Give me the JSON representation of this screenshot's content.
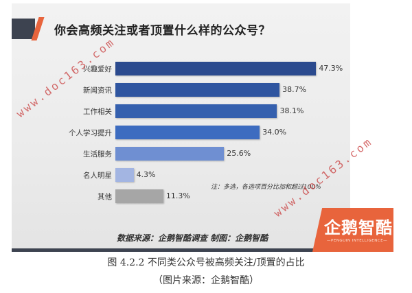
{
  "slide": {
    "title": "你会高频关注或者顶置什么样的公众号？",
    "note": "注：多选，各选项百分比加和超过100%",
    "source": "数据来源：企鹅智酷调查  制图：企鹅智酷",
    "logo": {
      "text": "企鹅智酷",
      "subtitle": "—PENGUIN INTELLIGENCE—"
    }
  },
  "caption": {
    "line1": "图 4.2.2 不同类公众号被高频关注/顶置的占比",
    "line2": "（图片来源：企鹅智酷）"
  },
  "watermarks": [
    "www.doc163.com",
    "www.doc163.com"
  ],
  "chart_data": {
    "type": "bar",
    "orientation": "horizontal",
    "title": "你会高频关注或者顶置什么样的公众号？",
    "categories": [
      "兴趣爱好",
      "新闻资讯",
      "工作相关",
      "个人学习提升",
      "生活服务",
      "名人明星",
      "其他"
    ],
    "values": [
      47.3,
      38.7,
      38.1,
      34.0,
      25.6,
      4.3,
      11.3
    ],
    "labels": [
      "47.3%",
      "38.7%",
      "38.1%",
      "34.0%",
      "25.6%",
      "4.3%",
      "11.3%"
    ],
    "colors": [
      "#2b4a8e",
      "#2f55a0",
      "#3560ae",
      "#3d6cc0",
      "#6f8fd2",
      "#a3b5e2",
      "#a6a6a6"
    ],
    "xlabel": "",
    "ylabel": "",
    "unit": "%",
    "grid": false,
    "legend": "none",
    "note": "注：多选，各选项百分比加和超过100%"
  }
}
